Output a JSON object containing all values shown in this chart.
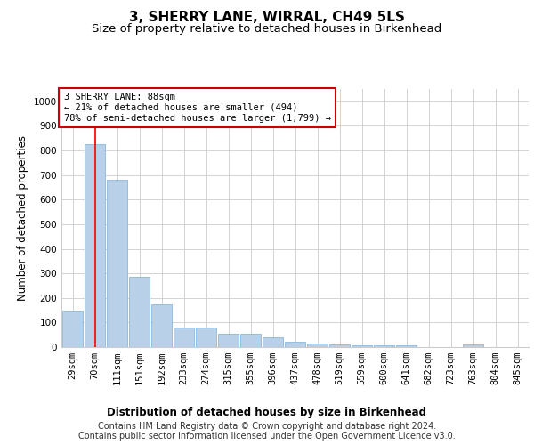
{
  "title": "3, SHERRY LANE, WIRRAL, CH49 5LS",
  "subtitle": "Size of property relative to detached houses in Birkenhead",
  "xlabel": "Distribution of detached houses by size in Birkenhead",
  "ylabel": "Number of detached properties",
  "categories": [
    "29sqm",
    "70sqm",
    "111sqm",
    "151sqm",
    "192sqm",
    "233sqm",
    "274sqm",
    "315sqm",
    "355sqm",
    "396sqm",
    "437sqm",
    "478sqm",
    "519sqm",
    "559sqm",
    "600sqm",
    "641sqm",
    "682sqm",
    "723sqm",
    "763sqm",
    "804sqm",
    "845sqm"
  ],
  "values": [
    150,
    825,
    680,
    285,
    175,
    78,
    78,
    55,
    55,
    40,
    22,
    15,
    10,
    8,
    8,
    8,
    0,
    0,
    10,
    0,
    0
  ],
  "bar_color": "#b8d0e8",
  "bar_edge_color": "#7aaed6",
  "vline_x": 1,
  "annotation_text": "3 SHERRY LANE: 88sqm\n← 21% of detached houses are smaller (494)\n78% of semi-detached houses are larger (1,799) →",
  "annotation_box_color": "#ffffff",
  "annotation_border_color": "#cc0000",
  "footer_line1": "Contains HM Land Registry data © Crown copyright and database right 2024.",
  "footer_line2": "Contains public sector information licensed under the Open Government Licence v3.0.",
  "ylim": [
    0,
    1050
  ],
  "yticks": [
    0,
    100,
    200,
    300,
    400,
    500,
    600,
    700,
    800,
    900,
    1000
  ],
  "background_color": "#ffffff",
  "grid_color": "#cccccc",
  "title_fontsize": 11,
  "subtitle_fontsize": 9.5,
  "axis_label_fontsize": 8.5,
  "tick_fontsize": 7.5,
  "footer_fontsize": 7
}
